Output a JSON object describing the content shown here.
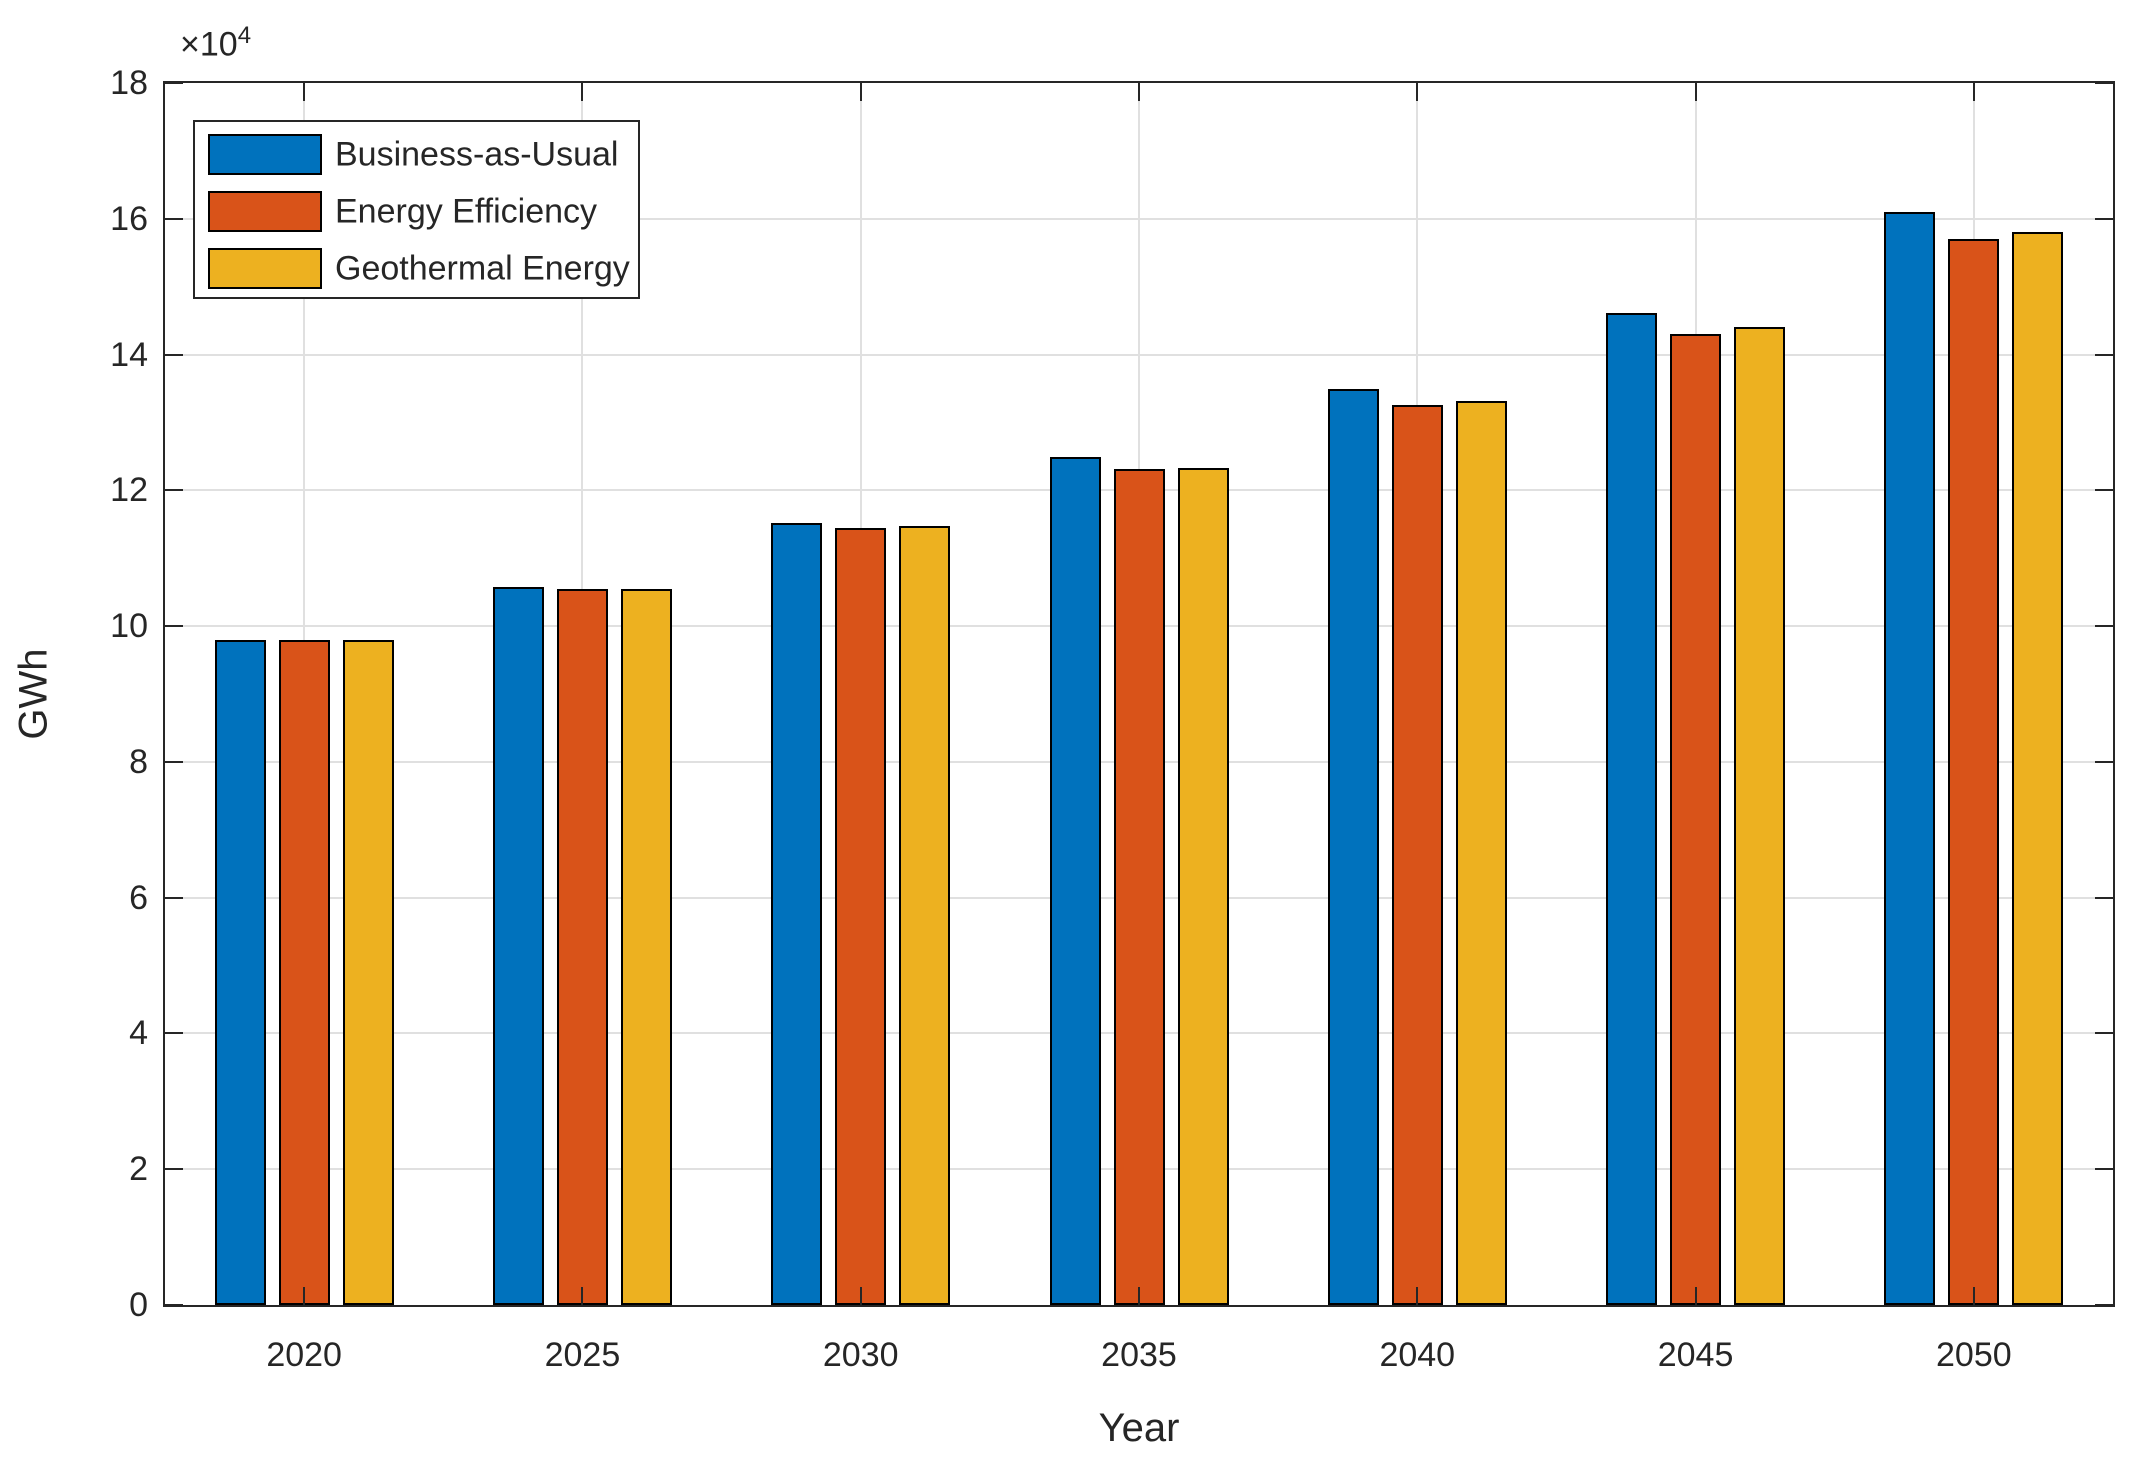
{
  "chart_data": {
    "type": "bar",
    "title": "",
    "xlabel": "Year",
    "ylabel": "GWh",
    "multiplier_base": "×10",
    "multiplier_exponent": "4",
    "categories": [
      "2020",
      "2025",
      "2030",
      "2035",
      "2040",
      "2045",
      "2050"
    ],
    "series": [
      {
        "name": "Business-as-Usual",
        "color": "#0072BD",
        "values": [
          9.8,
          10.58,
          11.52,
          12.49,
          13.5,
          14.61,
          16.1
        ]
      },
      {
        "name": "Energy Efficiency",
        "color": "#D95319",
        "values": [
          9.8,
          10.54,
          11.44,
          12.31,
          13.25,
          14.31,
          15.7
        ]
      },
      {
        "name": "Geothermal Energy",
        "color": "#EDB120",
        "values": [
          9.8,
          10.55,
          11.47,
          12.33,
          13.31,
          14.41,
          15.8
        ]
      }
    ],
    "ylim": [
      0,
      18
    ],
    "yticks": [
      0,
      2,
      4,
      6,
      8,
      10,
      12,
      14,
      16,
      18
    ],
    "grid": true,
    "legend_position": "top-left",
    "colors": {
      "axis": "#262626",
      "grid": "#e0e0e0",
      "bar_edge": "#000000",
      "background": "#ffffff"
    }
  }
}
